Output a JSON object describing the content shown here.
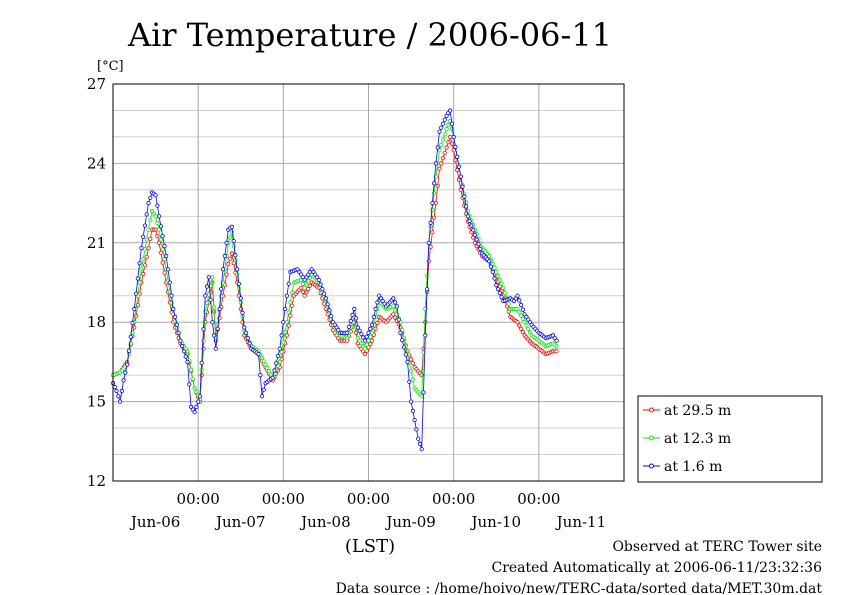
{
  "chart_data": {
    "type": "line",
    "title": "Air Temperature / 2006-06-11",
    "ylabel": "[°C]",
    "xlabel": "(LST)",
    "ylim": [
      12,
      27
    ],
    "xlim": [
      0,
      144
    ],
    "yticks": [
      "12",
      "15",
      "18",
      "21",
      "24",
      "27"
    ],
    "xticks": [
      {
        "pos": 24,
        "time": "00:00",
        "date": "Jun-07"
      },
      {
        "pos": 48,
        "time": "00:00",
        "date": "Jun-08"
      },
      {
        "pos": 72,
        "time": "00:00",
        "date": "Jun-09"
      },
      {
        "pos": 96,
        "time": "00:00",
        "date": "Jun-10"
      },
      {
        "pos": 120,
        "time": "00:00",
        "date": "Jun-11"
      }
    ],
    "day_labels": [
      {
        "pos": 12,
        "label": "Jun-06"
      },
      {
        "pos": 36,
        "label": "Jun-07"
      },
      {
        "pos": 60,
        "label": "Jun-08"
      },
      {
        "pos": 84,
        "label": "Jun-09"
      },
      {
        "pos": 108,
        "label": "Jun-10"
      },
      {
        "pos": 132,
        "label": "Jun-11"
      }
    ],
    "grid": true,
    "legend_position": "right",
    "series": [
      {
        "name": "at 29.5 m",
        "color": "#ff0000",
        "points": [
          [
            0,
            16.0
          ],
          [
            2,
            16.1
          ],
          [
            4,
            16.5
          ],
          [
            6,
            17.8
          ],
          [
            8,
            19.5
          ],
          [
            10,
            20.8
          ],
          [
            11,
            21.5
          ],
          [
            12,
            21.5
          ],
          [
            13,
            21.0
          ],
          [
            15,
            19.5
          ],
          [
            17,
            18.0
          ],
          [
            19,
            17.2
          ],
          [
            21,
            16.8
          ],
          [
            23,
            15.5
          ],
          [
            24.5,
            15.0
          ],
          [
            26,
            18.0
          ],
          [
            28,
            19.5
          ],
          [
            29,
            17.3
          ],
          [
            31,
            19.0
          ],
          [
            32.5,
            20.2
          ],
          [
            33.5,
            20.6
          ],
          [
            35,
            19.5
          ],
          [
            37,
            17.5
          ],
          [
            39,
            17.0
          ],
          [
            41,
            16.8
          ],
          [
            43,
            16.3
          ],
          [
            45,
            15.8
          ],
          [
            47,
            16.3
          ],
          [
            49,
            17.5
          ],
          [
            51,
            19.0
          ],
          [
            53,
            19.3
          ],
          [
            54,
            19.0
          ],
          [
            56,
            19.5
          ],
          [
            58,
            19.3
          ],
          [
            60,
            18.5
          ],
          [
            62,
            17.7
          ],
          [
            64,
            17.3
          ],
          [
            66,
            17.3
          ],
          [
            68,
            18.0
          ],
          [
            69,
            17.2
          ],
          [
            71,
            16.8
          ],
          [
            73,
            17.3
          ],
          [
            75,
            18.2
          ],
          [
            77,
            18.0
          ],
          [
            79,
            18.3
          ],
          [
            81,
            17.8
          ],
          [
            83,
            16.9
          ],
          [
            85,
            16.3
          ],
          [
            87,
            16.0
          ],
          [
            88,
            18.0
          ],
          [
            89,
            20.3
          ],
          [
            91,
            22.5
          ],
          [
            92,
            23.8
          ],
          [
            94,
            24.6
          ],
          [
            95,
            25.0
          ],
          [
            96,
            24.5
          ],
          [
            98,
            23.0
          ],
          [
            100,
            21.8
          ],
          [
            102,
            21.0
          ],
          [
            104,
            20.5
          ],
          [
            106,
            20.3
          ],
          [
            108,
            19.7
          ],
          [
            110,
            19.0
          ],
          [
            112,
            18.2
          ],
          [
            114,
            18.0
          ],
          [
            116,
            17.5
          ],
          [
            118,
            17.2
          ],
          [
            120,
            17.0
          ],
          [
            122,
            16.8
          ],
          [
            124,
            16.9
          ],
          [
            125,
            16.9
          ]
        ]
      },
      {
        "name": "at 12.3 m",
        "color": "#00ee00",
        "points": [
          [
            0,
            16.0
          ],
          [
            2,
            16.1
          ],
          [
            4,
            16.4
          ],
          [
            6,
            18.0
          ],
          [
            8,
            20.0
          ],
          [
            10,
            21.5
          ],
          [
            11,
            22.2
          ],
          [
            12,
            22.0
          ],
          [
            13,
            21.5
          ],
          [
            15,
            20.0
          ],
          [
            17,
            18.3
          ],
          [
            19,
            17.3
          ],
          [
            21,
            16.9
          ],
          [
            23,
            15.5
          ],
          [
            24.5,
            15.1
          ],
          [
            26,
            18.4
          ],
          [
            28,
            19.7
          ],
          [
            29,
            17.4
          ],
          [
            31,
            19.5
          ],
          [
            32.5,
            21.0
          ],
          [
            33.5,
            21.4
          ],
          [
            35,
            19.8
          ],
          [
            37,
            17.7
          ],
          [
            39,
            17.1
          ],
          [
            41,
            16.9
          ],
          [
            43,
            16.4
          ],
          [
            45,
            15.9
          ],
          [
            47,
            16.5
          ],
          [
            49,
            18.0
          ],
          [
            51,
            19.5
          ],
          [
            53,
            19.6
          ],
          [
            54,
            19.3
          ],
          [
            56,
            19.8
          ],
          [
            58,
            19.5
          ],
          [
            60,
            18.8
          ],
          [
            62,
            17.9
          ],
          [
            64,
            17.5
          ],
          [
            66,
            17.4
          ],
          [
            68,
            18.2
          ],
          [
            69,
            17.4
          ],
          [
            71,
            17.0
          ],
          [
            73,
            17.6
          ],
          [
            75,
            18.8
          ],
          [
            77,
            18.5
          ],
          [
            79,
            18.6
          ],
          [
            81,
            18.0
          ],
          [
            83,
            16.8
          ],
          [
            85,
            15.5
          ],
          [
            87,
            15.2
          ],
          [
            88,
            18.5
          ],
          [
            89,
            21.0
          ],
          [
            91,
            23.5
          ],
          [
            92,
            24.5
          ],
          [
            94,
            25.3
          ],
          [
            95,
            25.6
          ],
          [
            96,
            25.0
          ],
          [
            98,
            23.5
          ],
          [
            100,
            22.2
          ],
          [
            102,
            21.5
          ],
          [
            104,
            20.8
          ],
          [
            106,
            20.5
          ],
          [
            108,
            19.9
          ],
          [
            110,
            19.3
          ],
          [
            112,
            18.5
          ],
          [
            114,
            18.5
          ],
          [
            116,
            18.0
          ],
          [
            118,
            17.5
          ],
          [
            120,
            17.3
          ],
          [
            122,
            17.1
          ],
          [
            124,
            17.2
          ],
          [
            125,
            17.1
          ]
        ]
      },
      {
        "name": "at 1.6 m",
        "color": "#0000ff",
        "points": [
          [
            0,
            15.7
          ],
          [
            1,
            15.4
          ],
          [
            2,
            15.0
          ],
          [
            3,
            15.8
          ],
          [
            4,
            16.4
          ],
          [
            6,
            18.5
          ],
          [
            8,
            20.8
          ],
          [
            10,
            22.5
          ],
          [
            11,
            22.9
          ],
          [
            12,
            22.8
          ],
          [
            13,
            22.0
          ],
          [
            15,
            20.5
          ],
          [
            17,
            18.5
          ],
          [
            19,
            17.3
          ],
          [
            21,
            16.5
          ],
          [
            22,
            14.8
          ],
          [
            23,
            14.6
          ],
          [
            24.5,
            15.2
          ],
          [
            26,
            19.0
          ],
          [
            27,
            19.7
          ],
          [
            28,
            18.0
          ],
          [
            29,
            17.0
          ],
          [
            31,
            20.0
          ],
          [
            32,
            21.0
          ],
          [
            32.5,
            21.5
          ],
          [
            33.5,
            21.6
          ],
          [
            35,
            20.0
          ],
          [
            37,
            17.8
          ],
          [
            39,
            17.0
          ],
          [
            41,
            16.8
          ],
          [
            42,
            15.2
          ],
          [
            43,
            15.7
          ],
          [
            45,
            15.9
          ],
          [
            47,
            17.0
          ],
          [
            49,
            19.0
          ],
          [
            50,
            19.9
          ],
          [
            52,
            20.0
          ],
          [
            54,
            19.6
          ],
          [
            56,
            20.0
          ],
          [
            58,
            19.6
          ],
          [
            60,
            18.9
          ],
          [
            62,
            18.0
          ],
          [
            64,
            17.6
          ],
          [
            66,
            17.6
          ],
          [
            68,
            18.5
          ],
          [
            69,
            17.8
          ],
          [
            71,
            17.3
          ],
          [
            73,
            17.9
          ],
          [
            74,
            18.5
          ],
          [
            75,
            19.0
          ],
          [
            77,
            18.6
          ],
          [
            79,
            18.9
          ],
          [
            80,
            18.6
          ],
          [
            81,
            17.6
          ],
          [
            83,
            16.5
          ],
          [
            84,
            15.0
          ],
          [
            85,
            14.3
          ],
          [
            86,
            13.6
          ],
          [
            87,
            13.2
          ],
          [
            88,
            17.5
          ],
          [
            89,
            21.0
          ],
          [
            91,
            24.0
          ],
          [
            92,
            25.2
          ],
          [
            94,
            25.8
          ],
          [
            95,
            26.0
          ],
          [
            96,
            25.0
          ],
          [
            98,
            23.5
          ],
          [
            100,
            22.0
          ],
          [
            102,
            21.3
          ],
          [
            104,
            20.6
          ],
          [
            106,
            20.3
          ],
          [
            107,
            19.9
          ],
          [
            108,
            19.4
          ],
          [
            110,
            18.8
          ],
          [
            112,
            18.9
          ],
          [
            113,
            18.8
          ],
          [
            114,
            19.0
          ],
          [
            116,
            18.3
          ],
          [
            118,
            17.9
          ],
          [
            120,
            17.6
          ],
          [
            122,
            17.4
          ],
          [
            124,
            17.5
          ],
          [
            125,
            17.3
          ]
        ]
      }
    ]
  },
  "footer": {
    "line1": "Observed at TERC Tower site",
    "line2": "Created Automatically at 2006-06-11/23:32:36",
    "line3": "Data source : /home/hoivo/new/TERC-data/sorted  data/MET.30m.dat"
  }
}
